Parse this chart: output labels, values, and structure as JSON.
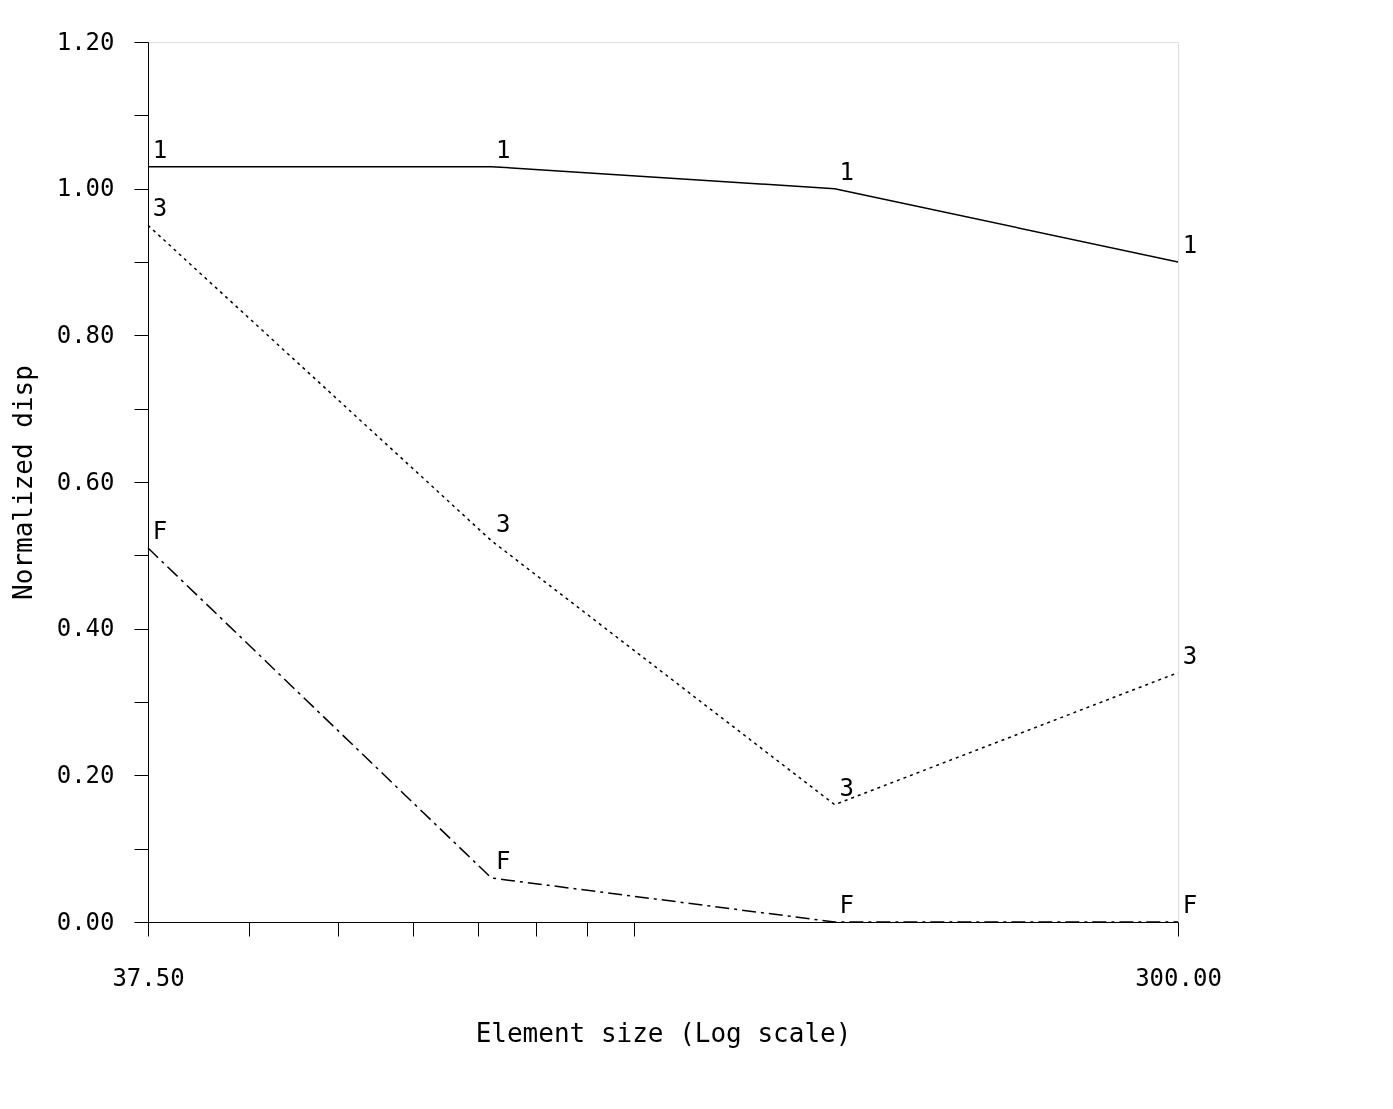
{
  "chart_data": {
    "type": "line",
    "xlabel": "Element size (Log scale)",
    "ylabel": "Normalized disp",
    "log": "x",
    "xlim": [
      37.5,
      300
    ],
    "ylim": [
      0,
      1.2
    ],
    "xticks": [
      {
        "value": 37.5,
        "label": "37.50"
      },
      {
        "value": 46,
        "label": null
      },
      {
        "value": 55,
        "label": null
      },
      {
        "value": 64,
        "label": null
      },
      {
        "value": 73,
        "label": null
      },
      {
        "value": 82,
        "label": null
      },
      {
        "value": 91,
        "label": null
      },
      {
        "value": 100,
        "label": null
      },
      {
        "value": 300,
        "label": "300.00"
      }
    ],
    "yticks": [
      {
        "value": 0,
        "label": "0.00"
      },
      {
        "value": 0.1,
        "label": null
      },
      {
        "value": 0.2,
        "label": "0.20"
      },
      {
        "value": 0.3,
        "label": null
      },
      {
        "value": 0.4,
        "label": "0.40"
      },
      {
        "value": 0.5,
        "label": null
      },
      {
        "value": 0.6,
        "label": "0.60"
      },
      {
        "value": 0.7,
        "label": null
      },
      {
        "value": 0.8,
        "label": "0.80"
      },
      {
        "value": 0.9,
        "label": null
      },
      {
        "value": 1.0,
        "label": "1.00"
      },
      {
        "value": 1.1,
        "label": null
      },
      {
        "value": 1.2,
        "label": "1.20"
      }
    ],
    "x": [
      37.5,
      75,
      150,
      300
    ],
    "grid": false,
    "marker": "none",
    "series": [
      {
        "name": "1",
        "color": "#000000",
        "line_style": "solid",
        "values": [
          1.03,
          1.03,
          1.0,
          0.9
        ]
      },
      {
        "name": "3",
        "color": "#000000",
        "line_style": "dotted",
        "values": [
          0.95,
          0.52,
          0.16,
          0.34
        ]
      },
      {
        "name": "F",
        "color": "#000000",
        "line_style": "dashed",
        "values": [
          0.51,
          0.06,
          0.0,
          0.0
        ]
      }
    ]
  }
}
